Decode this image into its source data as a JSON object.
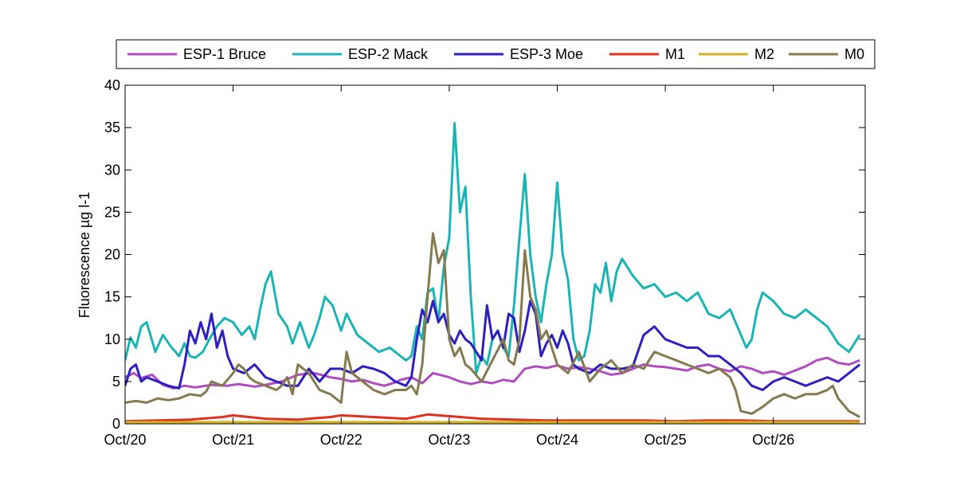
{
  "chart_data": {
    "type": "line",
    "ylabel": "Fluorescence µg l-1",
    "xlabel": "",
    "title": "",
    "xlim": [
      0,
      6.85
    ],
    "ylim": [
      0,
      40
    ],
    "x_ticks": [
      0,
      1,
      2,
      3,
      4,
      5,
      6
    ],
    "x_tick_labels": [
      "Oct/20",
      "Oct/21",
      "Oct/22",
      "Oct/23",
      "Oct/24",
      "Oct/25",
      "Oct/26"
    ],
    "y_ticks": [
      0,
      5,
      10,
      15,
      20,
      25,
      30,
      35,
      40
    ],
    "grid": false,
    "legend_position": "top, outside, horizontal",
    "series": [
      {
        "name": "ESP-1 Bruce",
        "color": "#b04cc0",
        "x": [
          0,
          0.08,
          0.15,
          0.25,
          0.35,
          0.45,
          0.55,
          0.65,
          0.8,
          0.95,
          1.05,
          1.2,
          1.3,
          1.45,
          1.6,
          1.75,
          1.9,
          2.0,
          2.1,
          2.2,
          2.3,
          2.4,
          2.5,
          2.55,
          2.65,
          2.75,
          2.85,
          3.0,
          3.1,
          3.2,
          3.3,
          3.4,
          3.5,
          3.6,
          3.7,
          3.8,
          3.9,
          4.0,
          4.1,
          4.2,
          4.3,
          4.4,
          4.5,
          4.6,
          4.7,
          4.8,
          4.9,
          5.0,
          5.1,
          5.2,
          5.3,
          5.4,
          5.5,
          5.6,
          5.7,
          5.8,
          5.9,
          6.0,
          6.1,
          6.2,
          6.3,
          6.4,
          6.5,
          6.6,
          6.7,
          6.8
        ],
        "y": [
          5.5,
          6.0,
          5.4,
          5.8,
          4.6,
          4.2,
          4.5,
          4.3,
          4.6,
          4.5,
          4.7,
          4.4,
          4.6,
          5.0,
          5.8,
          6.0,
          5.5,
          5.3,
          5.0,
          5.2,
          4.8,
          4.5,
          4.9,
          5.2,
          5.5,
          4.8,
          6.0,
          5.5,
          5.0,
          4.7,
          5.0,
          4.8,
          5.2,
          5.0,
          6.5,
          6.8,
          6.6,
          6.9,
          6.5,
          6.7,
          6.5,
          6.2,
          5.8,
          6.0,
          6.5,
          7.0,
          6.8,
          6.7,
          6.5,
          6.3,
          6.8,
          7.0,
          6.5,
          6.2,
          6.8,
          6.5,
          6.0,
          6.2,
          5.8,
          6.3,
          6.8,
          7.5,
          7.8,
          7.2,
          7.0,
          7.5
        ]
      },
      {
        "name": "ESP-2 Mack",
        "color": "#1ab4b4",
        "x": [
          0,
          0.05,
          0.1,
          0.15,
          0.2,
          0.28,
          0.35,
          0.42,
          0.5,
          0.55,
          0.6,
          0.65,
          0.72,
          0.78,
          0.85,
          0.92,
          1.0,
          1.08,
          1.15,
          1.2,
          1.25,
          1.3,
          1.35,
          1.42,
          1.5,
          1.55,
          1.62,
          1.7,
          1.75,
          1.8,
          1.85,
          1.92,
          2.0,
          2.05,
          2.15,
          2.25,
          2.35,
          2.45,
          2.55,
          2.6,
          2.65,
          2.7,
          2.75,
          2.8,
          2.85,
          2.9,
          2.95,
          3.0,
          3.05,
          3.1,
          3.15,
          3.2,
          3.25,
          3.3,
          3.35,
          3.4,
          3.45,
          3.5,
          3.55,
          3.6,
          3.65,
          3.7,
          3.75,
          3.8,
          3.85,
          3.9,
          3.95,
          4.0,
          4.05,
          4.1,
          4.15,
          4.2,
          4.25,
          4.3,
          4.35,
          4.4,
          4.45,
          4.5,
          4.55,
          4.6,
          4.65,
          4.7,
          4.8,
          4.9,
          5.0,
          5.1,
          5.2,
          5.3,
          5.4,
          5.5,
          5.6,
          5.7,
          5.75,
          5.8,
          5.85,
          5.9,
          6.0,
          6.1,
          6.2,
          6.3,
          6.4,
          6.5,
          6.6,
          6.7,
          6.8
        ],
        "y": [
          7.5,
          10.2,
          9.0,
          11.5,
          12.0,
          8.5,
          10.5,
          9.2,
          8.0,
          9.5,
          8.0,
          7.8,
          8.5,
          10.0,
          11.5,
          12.5,
          12.0,
          10.5,
          11.5,
          10.0,
          13.5,
          16.5,
          18.0,
          13.0,
          11.5,
          9.5,
          12.0,
          9.0,
          10.5,
          12.5,
          15.0,
          14.0,
          11.0,
          13.0,
          10.5,
          9.5,
          8.5,
          9.0,
          8.0,
          7.5,
          8.0,
          11.5,
          10.0,
          15.5,
          16.0,
          12.0,
          18.5,
          22.0,
          35.5,
          25.0,
          28.0,
          15.0,
          6.0,
          8.0,
          7.0,
          10.0,
          11.0,
          9.0,
          8.0,
          14.0,
          22.0,
          29.5,
          20.0,
          15.0,
          12.0,
          16.5,
          20.0,
          28.5,
          20.0,
          17.0,
          10.0,
          7.5,
          8.0,
          11.0,
          16.5,
          15.5,
          19.0,
          14.5,
          18.0,
          19.5,
          18.5,
          17.5,
          16.0,
          16.5,
          15.0,
          15.5,
          14.5,
          15.5,
          13.0,
          12.5,
          13.5,
          10.5,
          9.0,
          10.0,
          13.5,
          15.5,
          14.5,
          13.0,
          12.5,
          13.5,
          12.5,
          11.5,
          9.5,
          8.5,
          10.5
        ]
      },
      {
        "name": "ESP-3 Moe",
        "color": "#2e1fc0",
        "x": [
          0,
          0.05,
          0.1,
          0.15,
          0.2,
          0.3,
          0.4,
          0.5,
          0.55,
          0.6,
          0.65,
          0.7,
          0.75,
          0.8,
          0.85,
          0.9,
          0.95,
          1.0,
          1.1,
          1.2,
          1.3,
          1.4,
          1.5,
          1.6,
          1.7,
          1.8,
          1.9,
          2.0,
          2.1,
          2.2,
          2.3,
          2.4,
          2.5,
          2.6,
          2.65,
          2.7,
          2.75,
          2.8,
          2.85,
          2.9,
          2.95,
          3.0,
          3.05,
          3.1,
          3.15,
          3.2,
          3.25,
          3.3,
          3.35,
          3.4,
          3.45,
          3.5,
          3.55,
          3.6,
          3.65,
          3.7,
          3.75,
          3.8,
          3.85,
          3.9,
          3.95,
          4.0,
          4.05,
          4.1,
          4.15,
          4.2,
          4.3,
          4.4,
          4.5,
          4.6,
          4.7,
          4.8,
          4.9,
          5.0,
          5.1,
          5.2,
          5.3,
          5.4,
          5.5,
          5.6,
          5.7,
          5.8,
          5.9,
          6.0,
          6.1,
          6.2,
          6.3,
          6.4,
          6.5,
          6.6,
          6.7,
          6.8
        ],
        "y": [
          4.5,
          6.5,
          7.0,
          5.0,
          5.5,
          5.0,
          4.5,
          4.2,
          7.0,
          11.0,
          9.5,
          12.0,
          10.0,
          13.0,
          9.0,
          11.0,
          8.0,
          6.5,
          6.0,
          7.0,
          5.5,
          5.0,
          4.5,
          4.5,
          6.5,
          5.0,
          6.5,
          6.5,
          6.0,
          6.8,
          6.5,
          6.0,
          5.0,
          4.5,
          5.5,
          10.0,
          13.5,
          12.0,
          14.5,
          12.0,
          13.0,
          10.5,
          9.5,
          11.0,
          10.0,
          9.5,
          8.5,
          7.5,
          14.0,
          10.0,
          11.0,
          9.0,
          13.0,
          12.5,
          8.5,
          11.0,
          14.5,
          13.0,
          8.0,
          9.5,
          10.5,
          9.0,
          11.0,
          9.5,
          7.0,
          6.5,
          6.0,
          7.0,
          6.5,
          6.5,
          6.8,
          10.5,
          11.5,
          10.0,
          9.5,
          9.0,
          9.0,
          8.0,
          8.0,
          7.0,
          6.0,
          4.5,
          4.0,
          5.0,
          5.5,
          5.0,
          4.5,
          5.0,
          5.5,
          5.0,
          6.0,
          7.0
        ]
      },
      {
        "name": "M1",
        "color": "#e0301e",
        "x": [
          0,
          0.3,
          0.6,
          0.9,
          1.0,
          1.3,
          1.6,
          1.9,
          2.0,
          2.3,
          2.6,
          2.8,
          3.0,
          3.3,
          3.6,
          3.9,
          4.2,
          4.5,
          4.8,
          5.1,
          5.4,
          5.7,
          6.0,
          6.3,
          6.6,
          6.8
        ],
        "y": [
          0.3,
          0.4,
          0.5,
          0.8,
          1.0,
          0.6,
          0.5,
          0.8,
          1.0,
          0.8,
          0.6,
          1.1,
          0.9,
          0.6,
          0.5,
          0.4,
          0.4,
          0.4,
          0.4,
          0.3,
          0.4,
          0.4,
          0.3,
          0.3,
          0.3,
          0.3
        ]
      },
      {
        "name": "M2",
        "color": "#d4b020",
        "x": [
          0,
          0.5,
          1.0,
          1.5,
          2.0,
          2.5,
          3.0,
          3.5,
          4.0,
          4.5,
          5.0,
          5.5,
          6.0,
          6.5,
          6.8
        ],
        "y": [
          0.2,
          0.2,
          0.2,
          0.2,
          0.2,
          0.2,
          0.2,
          0.2,
          0.2,
          0.2,
          0.2,
          0.2,
          0.2,
          0.2,
          0.2
        ]
      },
      {
        "name": "M0",
        "color": "#857a4e",
        "x": [
          0,
          0.1,
          0.2,
          0.3,
          0.4,
          0.5,
          0.6,
          0.7,
          0.75,
          0.8,
          0.9,
          1.0,
          1.05,
          1.1,
          1.15,
          1.2,
          1.3,
          1.4,
          1.45,
          1.5,
          1.55,
          1.6,
          1.7,
          1.8,
          1.9,
          2.0,
          2.05,
          2.1,
          2.2,
          2.3,
          2.4,
          2.5,
          2.6,
          2.65,
          2.7,
          2.75,
          2.8,
          2.85,
          2.9,
          2.95,
          3.0,
          3.05,
          3.1,
          3.15,
          3.2,
          3.3,
          3.4,
          3.5,
          3.55,
          3.6,
          3.65,
          3.7,
          3.75,
          3.8,
          3.85,
          3.9,
          3.95,
          4.0,
          4.1,
          4.2,
          4.3,
          4.4,
          4.5,
          4.6,
          4.7,
          4.8,
          4.9,
          5.0,
          5.1,
          5.2,
          5.3,
          5.4,
          5.5,
          5.6,
          5.65,
          5.7,
          5.8,
          5.9,
          6.0,
          6.1,
          6.2,
          6.3,
          6.4,
          6.5,
          6.55,
          6.6,
          6.7,
          6.8
        ],
        "y": [
          2.5,
          2.7,
          2.5,
          3.0,
          2.8,
          3.0,
          3.5,
          3.3,
          3.8,
          5.0,
          4.5,
          6.0,
          7.0,
          6.5,
          5.5,
          5.0,
          4.5,
          4.0,
          4.5,
          5.5,
          3.5,
          7.0,
          6.0,
          4.0,
          3.5,
          2.5,
          8.5,
          6.0,
          5.0,
          4.0,
          3.5,
          4.0,
          4.0,
          4.5,
          3.5,
          7.0,
          15.0,
          22.5,
          19.0,
          20.5,
          10.0,
          8.0,
          9.0,
          7.0,
          6.5,
          5.0,
          7.5,
          10.0,
          7.5,
          7.0,
          10.0,
          20.5,
          15.0,
          13.5,
          10.0,
          11.0,
          9.0,
          7.0,
          6.0,
          8.5,
          5.0,
          6.5,
          7.5,
          6.0,
          7.0,
          6.5,
          8.5,
          8.0,
          7.5,
          7.0,
          6.5,
          6.0,
          6.5,
          5.5,
          4.0,
          1.5,
          1.2,
          2.0,
          3.0,
          3.5,
          3.0,
          3.5,
          3.5,
          4.0,
          4.5,
          3.0,
          1.5,
          0.8
        ]
      }
    ]
  }
}
